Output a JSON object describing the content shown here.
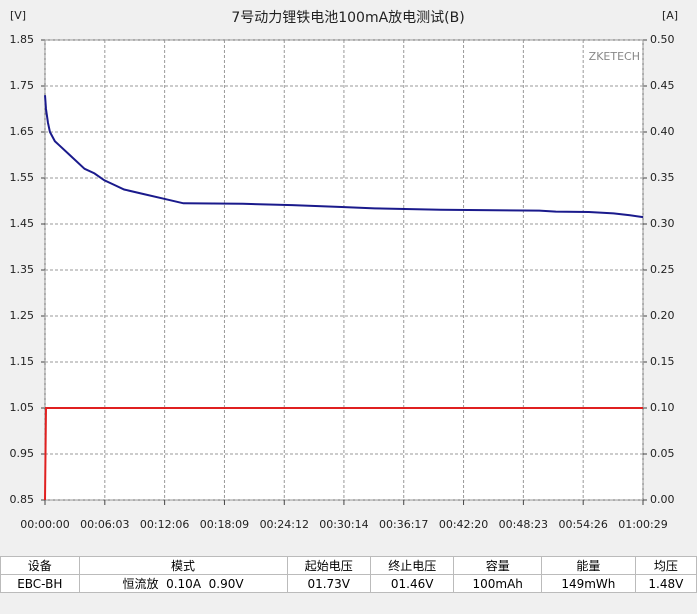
{
  "chart_data": {
    "type": "line",
    "title": "7号动力锂铁电池100mA放电测试(B)",
    "y_label": "[V]",
    "y2_label": "[A]",
    "annotation": "ZKETECH",
    "xlim": [
      0,
      3629
    ],
    "xticks": [
      {
        "value": 0,
        "label": "00:00:00"
      },
      {
        "value": 363,
        "label": "00:06:03"
      },
      {
        "value": 726,
        "label": "00:12:06"
      },
      {
        "value": 1089,
        "label": "00:18:09"
      },
      {
        "value": 1452,
        "label": "00:24:12"
      },
      {
        "value": 1814,
        "label": "00:30:14"
      },
      {
        "value": 2177,
        "label": "00:36:17"
      },
      {
        "value": 2540,
        "label": "00:42:20"
      },
      {
        "value": 2903,
        "label": "00:48:23"
      },
      {
        "value": 3266,
        "label": "00:54:26"
      },
      {
        "value": 3629,
        "label": "01:00:29"
      }
    ],
    "ylim": [
      0.85,
      1.85
    ],
    "yticks": [
      1.85,
      1.75,
      1.65,
      1.55,
      1.45,
      1.35,
      1.25,
      1.15,
      1.05,
      0.95,
      0.85
    ],
    "y2lim": [
      0,
      0.5
    ],
    "y2ticks": [
      {
        "value": 0.5,
        "label": "0.50"
      },
      {
        "value": 0.45,
        "label": "0.45"
      },
      {
        "value": 0.4,
        "label": "0.40"
      },
      {
        "value": 0.35,
        "label": "0.35"
      },
      {
        "value": 0.3,
        "label": "0.30"
      },
      {
        "value": 0.25,
        "label": "0.25"
      },
      {
        "value": 0.2,
        "label": "0.20"
      },
      {
        "value": 0.15,
        "label": "0.15"
      },
      {
        "value": 0.1,
        "label": "0.10"
      },
      {
        "value": 0.05,
        "label": "0.05"
      },
      {
        "value": 0,
        "label": "0.00"
      }
    ],
    "grid": true,
    "series": [
      {
        "color": "#1a1a8c",
        "axis": "y",
        "x": [
          0,
          6,
          18,
          30,
          60,
          90,
          150,
          240,
          300,
          360,
          420,
          480,
          600,
          720,
          840,
          1200,
          1500,
          1800,
          2000,
          2400,
          3000,
          3100,
          3300,
          3450,
          3550,
          3629
        ],
        "values": [
          1.73,
          1.7,
          1.67,
          1.65,
          1.63,
          1.62,
          1.6,
          1.57,
          1.56,
          1.545,
          1.535,
          1.525,
          1.515,
          1.505,
          1.495,
          1.494,
          1.491,
          1.487,
          1.484,
          1.481,
          1.479,
          1.477,
          1.476,
          1.473,
          1.469,
          1.465
        ]
      },
      {
        "color": "#e02020",
        "axis": "y2",
        "x": [
          0,
          6,
          3629
        ],
        "values": [
          0,
          0.1,
          0.1
        ]
      }
    ]
  },
  "table": {
    "header": [
      "设备",
      "模式",
      "起始电压",
      "终止电压",
      "容量",
      "能量",
      "均压"
    ],
    "rows": [
      [
        "EBC-BH",
        "恒流放  0.10A  0.90V",
        "01.73V",
        "01.46V",
        "100mAh",
        "149mWh",
        "1.48V"
      ]
    ]
  }
}
